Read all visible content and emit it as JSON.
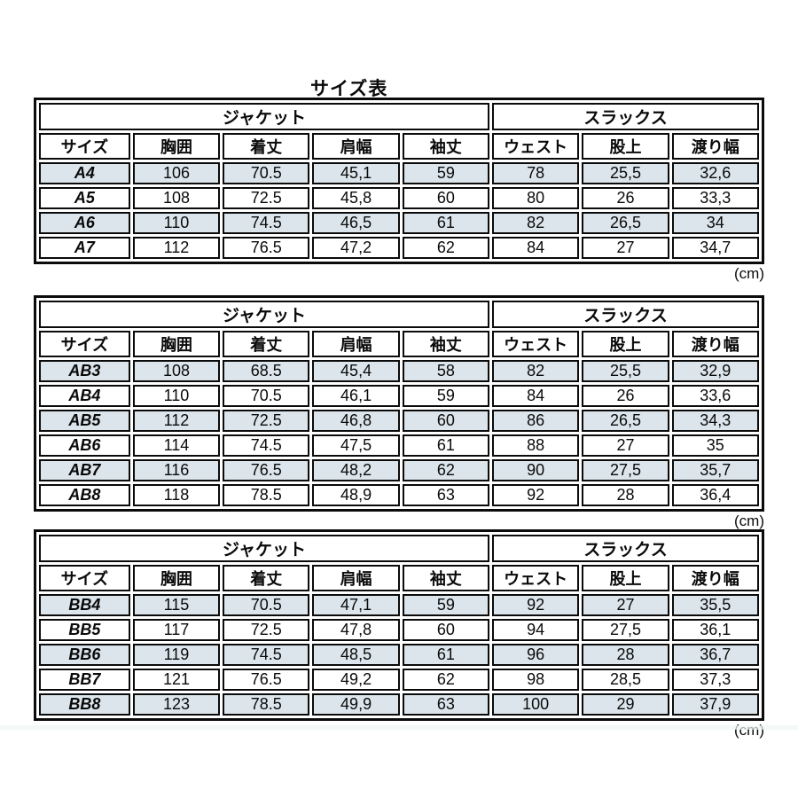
{
  "page": {
    "title": "サイズ表"
  },
  "colors": {
    "table_border": "#0b0b0b",
    "shaded_row": "#dbe5eb",
    "background": "#ffffff"
  },
  "tables": [
    {
      "group_headers": [
        {
          "label": "ジャケット",
          "span": 5
        },
        {
          "label": "スラックス",
          "span": 3
        }
      ],
      "columns": [
        "サイズ",
        "胸囲",
        "着丈",
        "肩幅",
        "袖丈",
        "ウェスト",
        "股上",
        "渡り幅"
      ],
      "rows": [
        {
          "size": "A4",
          "values": [
            "106",
            "70.5",
            "45,1",
            "59",
            "78",
            "25,5",
            "32,6"
          ]
        },
        {
          "size": "A5",
          "values": [
            "108",
            "72.5",
            "45,8",
            "60",
            "80",
            "26",
            "33,3"
          ]
        },
        {
          "size": "A6",
          "values": [
            "110",
            "74.5",
            "46,5",
            "61",
            "82",
            "26,5",
            "34"
          ]
        },
        {
          "size": "A7",
          "values": [
            "112",
            "76.5",
            "47,2",
            "62",
            "84",
            "27",
            "34,7"
          ]
        }
      ],
      "unit": "(cm)"
    },
    {
      "group_headers": [
        {
          "label": "ジャケット",
          "span": 5
        },
        {
          "label": "スラックス",
          "span": 3
        }
      ],
      "columns": [
        "サイズ",
        "胸囲",
        "着丈",
        "肩幅",
        "袖丈",
        "ウェスト",
        "股上",
        "渡り幅"
      ],
      "rows": [
        {
          "size": "AB3",
          "values": [
            "108",
            "68.5",
            "45,4",
            "58",
            "82",
            "25,5",
            "32,9"
          ]
        },
        {
          "size": "AB4",
          "values": [
            "110",
            "70.5",
            "46,1",
            "59",
            "84",
            "26",
            "33,6"
          ]
        },
        {
          "size": "AB5",
          "values": [
            "112",
            "72.5",
            "46,8",
            "60",
            "86",
            "26,5",
            "34,3"
          ]
        },
        {
          "size": "AB6",
          "values": [
            "114",
            "74.5",
            "47,5",
            "61",
            "88",
            "27",
            "35"
          ]
        },
        {
          "size": "AB7",
          "values": [
            "116",
            "76.5",
            "48,2",
            "62",
            "90",
            "27,5",
            "35,7"
          ]
        },
        {
          "size": "AB8",
          "values": [
            "118",
            "78.5",
            "48,9",
            "63",
            "92",
            "28",
            "36,4"
          ]
        }
      ],
      "unit": "(cm)"
    },
    {
      "group_headers": [
        {
          "label": "ジャケット",
          "span": 5
        },
        {
          "label": "スラックス",
          "span": 3
        }
      ],
      "columns": [
        "サイズ",
        "胸囲",
        "着丈",
        "肩幅",
        "袖丈",
        "ウェスト",
        "股上",
        "渡り幅"
      ],
      "rows": [
        {
          "size": "BB4",
          "values": [
            "115",
            "70.5",
            "47,1",
            "59",
            "92",
            "27",
            "35,5"
          ]
        },
        {
          "size": "BB5",
          "values": [
            "117",
            "72.5",
            "47,8",
            "60",
            "94",
            "27,5",
            "36,1"
          ]
        },
        {
          "size": "BB6",
          "values": [
            "119",
            "74.5",
            "48,5",
            "61",
            "96",
            "28",
            "36,7"
          ]
        },
        {
          "size": "BB7",
          "values": [
            "121",
            "76.5",
            "49,2",
            "62",
            "98",
            "28,5",
            "37,3"
          ]
        },
        {
          "size": "BB8",
          "values": [
            "123",
            "78.5",
            "49,9",
            "63",
            "100",
            "29",
            "37,9"
          ]
        }
      ],
      "unit": "(cm)"
    }
  ]
}
